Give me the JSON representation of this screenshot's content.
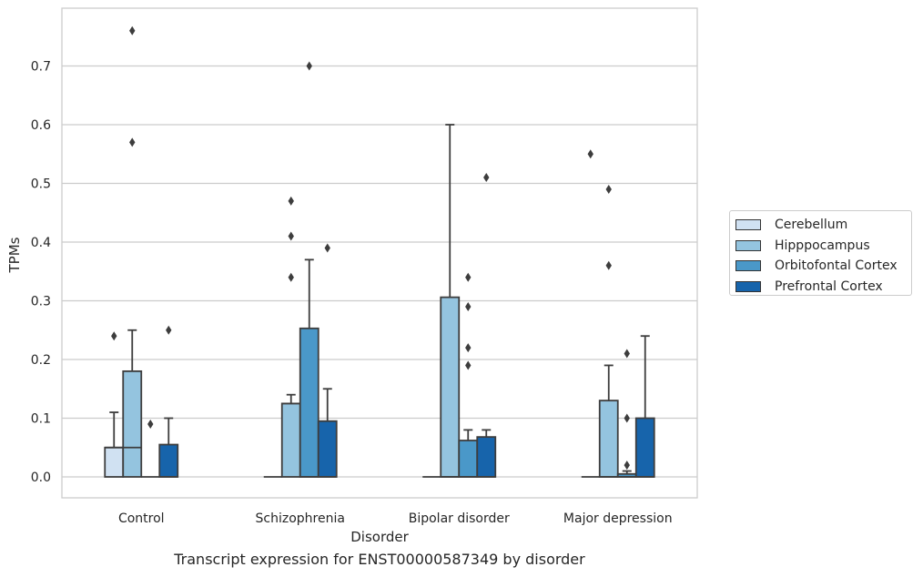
{
  "chart_data": {
    "type": "box",
    "xlabel": "Disorder",
    "ylabel": "TPMs",
    "ylim": [
      -0.037,
      0.8
    ],
    "yticks": [
      "0.0",
      "0.1",
      "0.2",
      "0.3",
      "0.4",
      "0.5",
      "0.6",
      "0.7"
    ],
    "grid": "horizontal",
    "legend_position": "right",
    "categories": [
      "Control",
      "Schizophrenia",
      "Bipolar disorder",
      "Major depression"
    ],
    "series": [
      {
        "name": "Cerebellum",
        "color": "#d0e1f2",
        "boxes": [
          {
            "q1": 0.0,
            "median": 0.05,
            "q3": 0.05,
            "whisker_low": 0.0,
            "whisker_high": 0.11,
            "outliers": [
              0.24
            ]
          },
          {
            "q1": 0.0,
            "median": 0.0,
            "q3": 0.0,
            "whisker_low": 0.0,
            "whisker_high": 0.0,
            "outliers": []
          },
          {
            "q1": 0.0,
            "median": 0.0,
            "q3": 0.0,
            "whisker_low": 0.0,
            "whisker_high": 0.0,
            "outliers": []
          },
          {
            "q1": 0.0,
            "median": 0.0,
            "q3": 0.0,
            "whisker_low": 0.0,
            "whisker_high": 0.0,
            "outliers": [
              0.55
            ]
          }
        ]
      },
      {
        "name": "Hipppocampus",
        "color": "#94c4df",
        "boxes": [
          {
            "q1": 0.0,
            "median": 0.05,
            "q3": 0.18,
            "whisker_low": 0.0,
            "whisker_high": 0.25,
            "outliers": [
              0.57,
              0.76
            ]
          },
          {
            "q1": 0.0,
            "median": 0.125,
            "q3": 0.125,
            "whisker_low": 0.0,
            "whisker_high": 0.14,
            "outliers": [
              0.34,
              0.41,
              0.47
            ]
          },
          {
            "q1": 0.0,
            "median": 0.0,
            "q3": 0.306,
            "whisker_low": 0.0,
            "whisker_high": 0.6,
            "outliers": []
          },
          {
            "q1": 0.0,
            "median": 0.0,
            "q3": 0.13,
            "whisker_low": 0.0,
            "whisker_high": 0.19,
            "outliers": [
              0.36,
              0.49
            ]
          }
        ]
      },
      {
        "name": "Orbitofontal Cortex",
        "color": "#4a98c9",
        "boxes": [
          {
            "q1": 0.0,
            "median": 0.0,
            "q3": 0.0,
            "whisker_low": 0.0,
            "whisker_high": 0.0,
            "outliers": [
              0.09
            ]
          },
          {
            "q1": 0.0,
            "median": 0.0,
            "q3": 0.253,
            "whisker_low": 0.0,
            "whisker_high": 0.37,
            "outliers": [
              0.7
            ]
          },
          {
            "q1": 0.0,
            "median": 0.0,
            "q3": 0.062,
            "whisker_low": 0.0,
            "whisker_high": 0.08,
            "outliers": [
              0.19,
              0.22,
              0.29,
              0.34
            ]
          },
          {
            "q1": 0.0,
            "median": 0.0,
            "q3": 0.005,
            "whisker_low": 0.0,
            "whisker_high": 0.01,
            "outliers": [
              0.02,
              0.1,
              0.21
            ]
          }
        ]
      },
      {
        "name": "Prefrontal Cortex",
        "color": "#1764ab",
        "boxes": [
          {
            "q1": 0.0,
            "median": 0.0,
            "q3": 0.055,
            "whisker_low": 0.0,
            "whisker_high": 0.1,
            "outliers": [
              0.25
            ]
          },
          {
            "q1": 0.0,
            "median": 0.0,
            "q3": 0.095,
            "whisker_low": 0.0,
            "whisker_high": 0.15,
            "outliers": [
              0.39
            ]
          },
          {
            "q1": 0.0,
            "median": 0.0,
            "q3": 0.068,
            "whisker_low": 0.0,
            "whisker_high": 0.08,
            "outliers": [
              0.51
            ]
          },
          {
            "q1": 0.0,
            "median": 0.0,
            "q3": 0.1,
            "whisker_low": 0.0,
            "whisker_high": 0.24,
            "outliers": []
          }
        ]
      }
    ]
  },
  "caption": "Transcript expression for ENST00000587349 by disorder"
}
